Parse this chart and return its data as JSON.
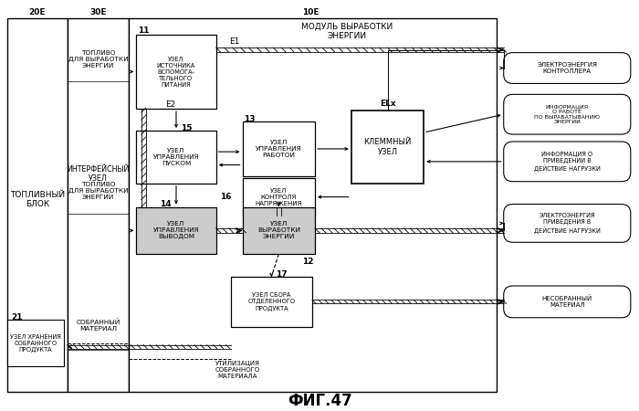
{
  "title": "ФИГ.47",
  "bg_color": "#ffffff",
  "labels": {
    "20E": "20Е",
    "30E": "30Е",
    "10E": "10Е",
    "toplivny_blok": "ТОПЛИВНЫЙ\nБЛОК",
    "interfeysniy_uzel": "ИНТЕРФЕЙСНЫЙ\nУЗЕЛ",
    "toplivo1": "ТОПЛИВО\nДЛЯ ВЫРАБОТКИ\nЭНЕРГИИ",
    "toplivo2": "ТОПЛИВО\nДЛЯ ВЫРАБОТКИ\nЭНЕРГИИ",
    "sobraniy_material": "СОБРАННЫЙ\nМАТЕРИАЛ",
    "utilizatsiya": "УТИЛИЗАЦИЯ\nСОБРАННОГО\nМАТЕРИАЛА",
    "modul": "МОДУЛЬ ВЫРАБОТКИ\nЭНЕРГИИ",
    "uzel11": "УЗЕЛ\nИСТОЧНИКА\nВСПОМОГА-\nТЕЛЬНОГО\nПИТАНИЯ",
    "uzel15": "УЗЕЛ\nУПРАВЛЕНИЯ\nПУСКОМ",
    "uzel13": "УЗЕЛ\nУПРАВЛЕНИЯ\nРАБОТОЙ",
    "uzel14": "УЗЕЛ\nУПРАВЛЕНИЯ\nВЫВОДОМ",
    "uzel12": "УЗЕЛ\nВЫРАБОТКИ\nЭНЕРГИИ",
    "uzel16": "УЗЕЛ\nКОНТРОЛЯ\nНАПРЯЖЕНИЯ",
    "uzel17": "УЗЕЛ СБОРА\nОТДЕЛЕННОГО\nПРОДУКТА",
    "klemmniy": "КЛЕММНЫЙ\nУЗЕЛ",
    "uzel21": "УЗЕЛ ХРАНЕНИЯ\nСОБРАННОГО\nПРОДУКТА",
    "elektr_kontr": "ЭЛЕКТРОЭНЕРГИЯ\nКОНТРОЛЛЕРА",
    "info_rabota": "ИНФОРМАЦИЯ\nО РАБОТЕ\nПО ВЫРАБАТЫВАНИЮ\nЭНЕРГИИ",
    "info_nagruzka": "ИНФОРМАЦИЯ О\nПРИВЕДЕНИИ В\nДЕЙСТВИЕ НАГРУЗКИ",
    "elektr_nagruzka": "ЭЛЕКТРОЭНЕРГИЯ\nПРИВЕДЕНИЯ В\nДЕЙСТВИЕ НАГРУЗКИ",
    "nesobranniy": "НЕСОБРАННЫЙ\nМАТЕРИАЛ",
    "E1": "E1",
    "E2": "E2",
    "ELx": "ELx",
    "n11": "11",
    "n12": "12",
    "n13": "13",
    "n14": "14",
    "n15": "15",
    "n16": "16",
    "n17": "17",
    "n21": "21"
  }
}
